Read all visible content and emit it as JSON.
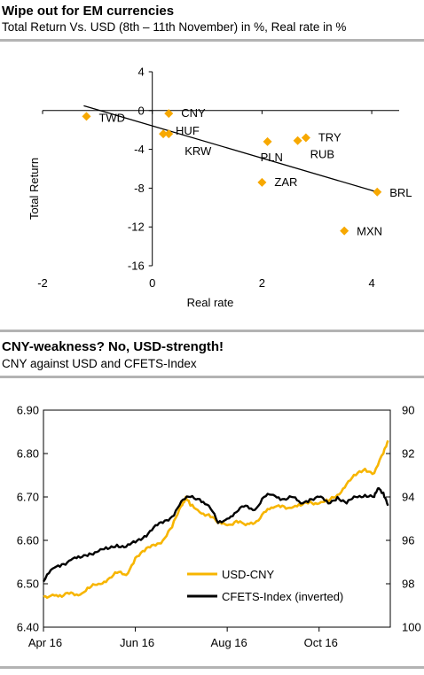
{
  "chart_data": [
    {
      "type": "scatter",
      "title": "Wipe out for EM currencies",
      "subtitle": "Total Return Vs. USD (8th – 11th November) in %, Real rate in %",
      "xlabel": "Real rate",
      "ylabel": "Total Return",
      "xlim": [
        -2,
        4.5
      ],
      "ylim": [
        -16,
        4
      ],
      "x_ticks": [
        "-2",
        "0",
        "2",
        "4"
      ],
      "y_ticks": [
        "4",
        "0",
        "-4",
        "-8",
        "-12",
        "-16"
      ],
      "x_tick_values": [
        -2,
        0,
        2,
        4
      ],
      "y_tick_values": [
        4,
        0,
        -4,
        -8,
        -12,
        -16
      ],
      "grid": false,
      "marker_color": "#f7a800",
      "trendline_color": "#000000",
      "trendline": [
        [
          -1.25,
          0.5
        ],
        [
          4.1,
          -8.4
        ]
      ],
      "points": [
        {
          "label": "TWD",
          "x": -1.2,
          "y": -0.6
        },
        {
          "label": "CNY",
          "x": 0.3,
          "y": -0.3
        },
        {
          "label": "HUF",
          "x": 0.2,
          "y": -2.4
        },
        {
          "label": "KRW",
          "x": 0.3,
          "y": -2.4
        },
        {
          "label": "PLN",
          "x": 2.1,
          "y": -3.2
        },
        {
          "label": "TRY",
          "x": 2.8,
          "y": -2.8
        },
        {
          "label": "RUB",
          "x": 2.65,
          "y": -3.1
        },
        {
          "label": "ZAR",
          "x": 2.0,
          "y": -7.4
        },
        {
          "label": "BRL",
          "x": 4.1,
          "y": -8.4
        },
        {
          "label": "MXN",
          "x": 3.5,
          "y": -12.4
        }
      ]
    },
    {
      "type": "line",
      "title": "CNY-weakness? No, USD-strength!",
      "subtitle": "CNY against USD and CFETS-Index",
      "x_ticks": [
        "Apr 16",
        "Jun 16",
        "Aug 16",
        "Oct 16"
      ],
      "x_tick_values": [
        0,
        2,
        4,
        6
      ],
      "xlim": [
        0,
        7.55
      ],
      "ylim": [
        6.4,
        6.9
      ],
      "y_ticks": [
        "6.90",
        "6.80",
        "6.70",
        "6.60",
        "6.50",
        "6.40"
      ],
      "y_tick_values": [
        6.9,
        6.8,
        6.7,
        6.6,
        6.5,
        6.4
      ],
      "y2lim": [
        90,
        100
      ],
      "y2_inverted": true,
      "y2_ticks": [
        "90",
        "92",
        "94",
        "96",
        "98",
        "100"
      ],
      "y2_tick_values": [
        90,
        92,
        94,
        96,
        98,
        100
      ],
      "grid": false,
      "legend_position": "bottom-right",
      "series": [
        {
          "name": "USD-CNY",
          "axis": "left",
          "color": "#f7b500",
          "x": [
            0,
            0.2,
            0.4,
            0.6,
            0.8,
            1.0,
            1.2,
            1.4,
            1.6,
            1.8,
            2.0,
            2.2,
            2.4,
            2.6,
            2.8,
            3.0,
            3.1,
            3.2,
            3.4,
            3.6,
            3.8,
            4.0,
            4.2,
            4.4,
            4.6,
            4.8,
            5.0,
            5.2,
            5.4,
            5.6,
            5.8,
            6.0,
            6.2,
            6.4,
            6.6,
            6.8,
            7.0,
            7.2,
            7.4,
            7.5
          ],
          "values": [
            6.47,
            6.475,
            6.47,
            6.48,
            6.475,
            6.49,
            6.5,
            6.51,
            6.525,
            6.52,
            6.56,
            6.575,
            6.59,
            6.6,
            6.63,
            6.68,
            6.7,
            6.68,
            6.665,
            6.66,
            6.64,
            6.635,
            6.645,
            6.635,
            6.64,
            6.665,
            6.675,
            6.68,
            6.675,
            6.68,
            6.69,
            6.685,
            6.69,
            6.705,
            6.73,
            6.75,
            6.765,
            6.755,
            6.8,
            6.83
          ]
        },
        {
          "name": "CFETS-Index (inverted)",
          "axis": "right",
          "color": "#000000",
          "x": [
            0,
            0.2,
            0.4,
            0.6,
            0.8,
            1.0,
            1.2,
            1.4,
            1.6,
            1.8,
            2.0,
            2.2,
            2.4,
            2.6,
            2.8,
            3.0,
            3.2,
            3.4,
            3.6,
            3.8,
            4.0,
            4.2,
            4.4,
            4.6,
            4.8,
            5.0,
            5.2,
            5.4,
            5.6,
            5.8,
            6.0,
            6.2,
            6.4,
            6.6,
            6.8,
            7.0,
            7.2,
            7.3,
            7.4,
            7.5
          ],
          "values": [
            97.9,
            97.3,
            97.1,
            96.9,
            96.8,
            96.6,
            96.5,
            96.4,
            96.2,
            96.3,
            96.1,
            95.8,
            95.4,
            95.2,
            94.9,
            94.2,
            94.0,
            94.1,
            94.4,
            95.2,
            95.0,
            94.7,
            94.4,
            94.6,
            94.0,
            93.9,
            94.1,
            94.0,
            94.3,
            94.1,
            94.0,
            94.3,
            94.0,
            94.3,
            94.0,
            93.9,
            94.0,
            93.6,
            93.8,
            94.4
          ]
        }
      ]
    }
  ]
}
